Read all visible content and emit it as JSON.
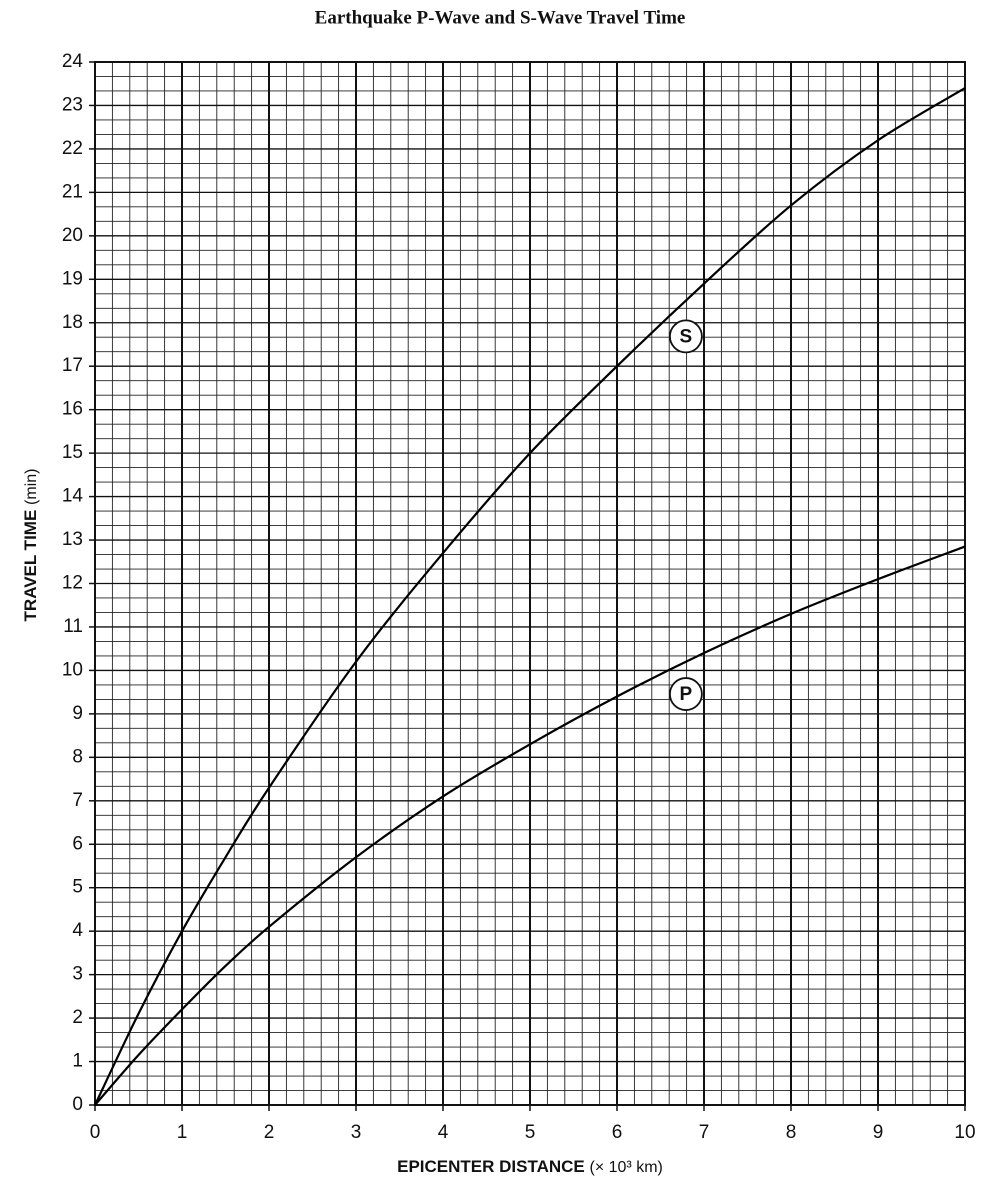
{
  "chart_data": {
    "type": "line",
    "title": "Earthquake P-Wave and S-Wave Travel Time",
    "xlabel": "EPICENTER DISTANCE",
    "xlabel_unit": "(× 10³ km)",
    "ylabel": "TRAVEL TIME",
    "ylabel_unit": "(min)",
    "x": [
      0,
      0.5,
      1,
      1.5,
      2,
      3,
      4,
      5,
      6,
      7,
      8,
      9,
      10
    ],
    "series": [
      {
        "name": "S",
        "color": "#000000",
        "values": [
          0,
          2.1,
          4.0,
          5.7,
          7.3,
          10.2,
          12.7,
          15.0,
          17.0,
          18.9,
          20.7,
          22.2,
          23.4
        ]
      },
      {
        "name": "P",
        "color": "#000000",
        "values": [
          0,
          1.15,
          2.2,
          3.2,
          4.1,
          5.7,
          7.1,
          8.3,
          9.4,
          10.4,
          11.3,
          12.1,
          12.85
        ]
      }
    ],
    "xlim": [
      0,
      10
    ],
    "xticks": [
      0,
      1,
      2,
      3,
      4,
      5,
      6,
      7,
      8,
      9,
      10
    ],
    "ylim": [
      0,
      24
    ],
    "yticks": [
      0,
      1,
      2,
      3,
      4,
      5,
      6,
      7,
      8,
      9,
      10,
      11,
      12,
      13,
      14,
      15,
      16,
      17,
      18,
      19,
      20,
      21,
      22,
      23,
      24
    ],
    "grid": true
  }
}
